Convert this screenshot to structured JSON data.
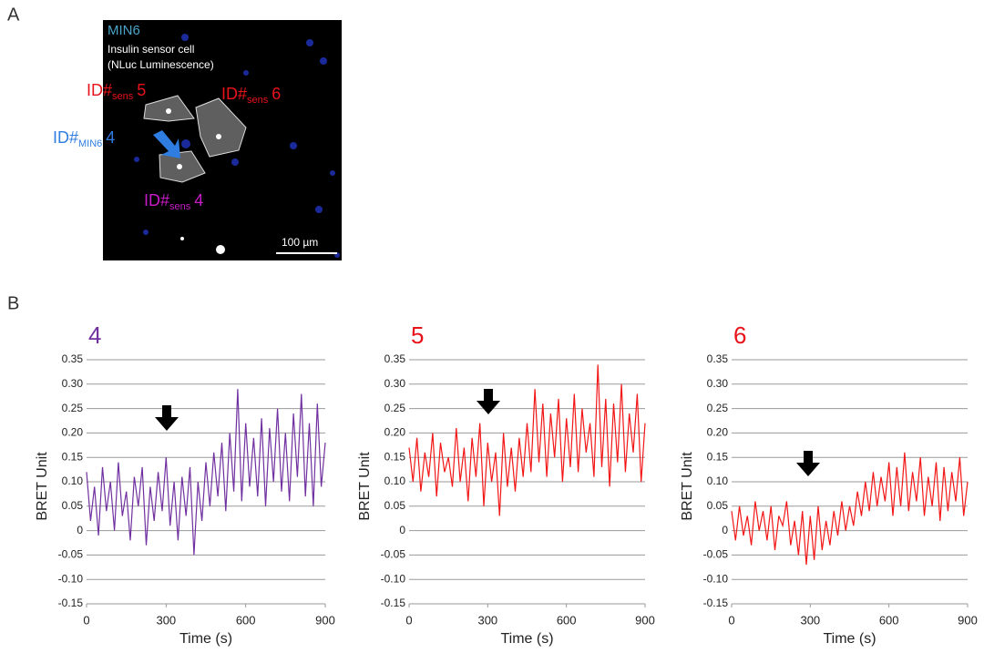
{
  "figure": {
    "panel_a": "A",
    "panel_b": "B",
    "image_texts": {
      "cell_line": "MIN6",
      "sensor_line1": "Insulin sensor cell",
      "sensor_line2": "(NLuc Luminescence)",
      "scale": "100 µm"
    },
    "cell_labels": [
      {
        "main": "ID#",
        "sub": "sens",
        "num": "5"
      },
      {
        "main": "ID#",
        "sub": "sens",
        "num": "6"
      },
      {
        "main": "ID#",
        "sub": "MIN6",
        "num": "4"
      },
      {
        "main": "ID#",
        "sub": "sens",
        "num": "4"
      }
    ]
  },
  "chart_data": [
    {
      "type": "line",
      "title": "4",
      "title_color": "#7030a0",
      "x_label": "Time (s)",
      "y_label": "BRET Unit",
      "xlim": [
        0,
        900
      ],
      "xticks": [
        0,
        300,
        600,
        900
      ],
      "ylim": [
        -0.15,
        0.35
      ],
      "yticks": [
        0.35,
        {
          "value": 0.3,
          "label": "0.30"
        },
        0.25,
        {
          "value": 0.2,
          "label": "0.20"
        },
        0.15,
        {
          "value": 0.1,
          "label": "0.10"
        },
        0.05,
        0,
        -0.05,
        {
          "value": -0.1,
          "label": "-0.10"
        },
        -0.15
      ],
      "grid": true,
      "x": [
        0,
        15,
        30,
        45,
        60,
        75,
        90,
        105,
        120,
        135,
        150,
        165,
        180,
        195,
        210,
        225,
        240,
        255,
        270,
        285,
        300,
        315,
        330,
        345,
        360,
        375,
        390,
        405,
        420,
        435,
        450,
        465,
        480,
        495,
        510,
        525,
        540,
        555,
        570,
        585,
        600,
        615,
        630,
        645,
        660,
        675,
        690,
        705,
        720,
        735,
        750,
        765,
        780,
        795,
        810,
        825,
        840,
        855,
        870,
        885,
        900
      ],
      "series": [
        {
          "color": "#7030a0",
          "values": [
            0.12,
            0.02,
            0.09,
            -0.01,
            0.13,
            0.04,
            0.1,
            0.0,
            0.14,
            0.03,
            0.08,
            -0.02,
            0.11,
            0.05,
            0.13,
            -0.03,
            0.09,
            0.02,
            0.12,
            0.04,
            0.15,
            0.01,
            0.1,
            -0.02,
            0.11,
            0.03,
            0.13,
            -0.05,
            0.1,
            0.02,
            0.14,
            0.05,
            0.16,
            0.07,
            0.18,
            0.04,
            0.2,
            0.08,
            0.29,
            0.06,
            0.22,
            0.09,
            0.19,
            0.07,
            0.23,
            0.05,
            0.21,
            0.1,
            0.25,
            0.08,
            0.2,
            0.06,
            0.24,
            0.11,
            0.28,
            0.07,
            0.22,
            0.05,
            0.26,
            0.09,
            0.18
          ]
        }
      ]
    },
    {
      "type": "line",
      "title": "5",
      "title_color": "#e8131a",
      "x_label": "Time (s)",
      "y_label": "BRET Unit",
      "xlim": [
        0,
        900
      ],
      "xticks": [
        0,
        300,
        600,
        900
      ],
      "ylim": [
        -0.15,
        0.35
      ],
      "yticks": [
        0.35,
        {
          "value": 0.3,
          "label": "0.30"
        },
        0.25,
        {
          "value": 0.2,
          "label": "0.20"
        },
        0.15,
        {
          "value": 0.1,
          "label": "0.10"
        },
        0.05,
        0,
        -0.05,
        {
          "value": -0.1,
          "label": "-0.10"
        },
        -0.15
      ],
      "grid": true,
      "x": [
        0,
        15,
        30,
        45,
        60,
        75,
        90,
        105,
        120,
        135,
        150,
        165,
        180,
        195,
        210,
        225,
        240,
        255,
        270,
        285,
        300,
        315,
        330,
        345,
        360,
        375,
        390,
        405,
        420,
        435,
        450,
        465,
        480,
        495,
        510,
        525,
        540,
        555,
        570,
        585,
        600,
        615,
        630,
        645,
        660,
        675,
        690,
        705,
        720,
        735,
        750,
        765,
        780,
        795,
        810,
        825,
        840,
        855,
        870,
        885,
        900
      ],
      "series": [
        {
          "color": "#f21616",
          "values": [
            0.17,
            0.1,
            0.19,
            0.08,
            0.16,
            0.11,
            0.2,
            0.07,
            0.18,
            0.12,
            0.15,
            0.09,
            0.21,
            0.1,
            0.17,
            0.06,
            0.19,
            0.11,
            0.22,
            0.05,
            0.18,
            0.1,
            0.16,
            0.03,
            0.2,
            0.09,
            0.17,
            0.08,
            0.19,
            0.11,
            0.22,
            0.12,
            0.29,
            0.14,
            0.26,
            0.11,
            0.24,
            0.15,
            0.27,
            0.1,
            0.23,
            0.13,
            0.28,
            0.12,
            0.25,
            0.16,
            0.22,
            0.11,
            0.34,
            0.13,
            0.27,
            0.09,
            0.26,
            0.14,
            0.3,
            0.12,
            0.24,
            0.16,
            0.28,
            0.1,
            0.22
          ]
        }
      ]
    },
    {
      "type": "line",
      "title": "6",
      "title_color": "#e8131a",
      "x_label": "Time (s)",
      "y_label": "BRET Unit",
      "xlim": [
        0,
        900
      ],
      "xticks": [
        0,
        300,
        600,
        900
      ],
      "ylim": [
        -0.15,
        0.35
      ],
      "yticks": [
        0.35,
        {
          "value": 0.3,
          "label": "0.30"
        },
        0.25,
        {
          "value": 0.2,
          "label": "0.20"
        },
        0.15,
        {
          "value": 0.1,
          "label": "0.10"
        },
        0.05,
        0,
        -0.05,
        {
          "value": -0.1,
          "label": "-0.10"
        },
        -0.15
      ],
      "grid": true,
      "x": [
        0,
        15,
        30,
        45,
        60,
        75,
        90,
        105,
        120,
        135,
        150,
        165,
        180,
        195,
        210,
        225,
        240,
        255,
        270,
        285,
        300,
        315,
        330,
        345,
        360,
        375,
        390,
        405,
        420,
        435,
        450,
        465,
        480,
        495,
        510,
        525,
        540,
        555,
        570,
        585,
        600,
        615,
        630,
        645,
        660,
        675,
        690,
        705,
        720,
        735,
        750,
        765,
        780,
        795,
        810,
        825,
        840,
        855,
        870,
        885,
        900
      ],
      "series": [
        {
          "color": "#f21616",
          "values": [
            0.04,
            -0.02,
            0.05,
            -0.01,
            0.03,
            -0.03,
            0.06,
            0.0,
            0.04,
            -0.02,
            0.05,
            -0.04,
            0.03,
            0.01,
            0.06,
            -0.03,
            0.02,
            -0.05,
            0.04,
            -0.07,
            0.03,
            -0.06,
            0.05,
            -0.04,
            0.02,
            -0.03,
            0.04,
            -0.01,
            0.06,
            0.0,
            0.05,
            0.01,
            0.08,
            0.03,
            0.1,
            0.04,
            0.12,
            0.05,
            0.11,
            0.06,
            0.14,
            0.03,
            0.13,
            0.05,
            0.16,
            0.04,
            0.12,
            0.06,
            0.15,
            0.03,
            0.11,
            0.05,
            0.14,
            0.02,
            0.13,
            0.04,
            0.12,
            0.06,
            0.15,
            0.03,
            0.1
          ]
        }
      ]
    }
  ]
}
